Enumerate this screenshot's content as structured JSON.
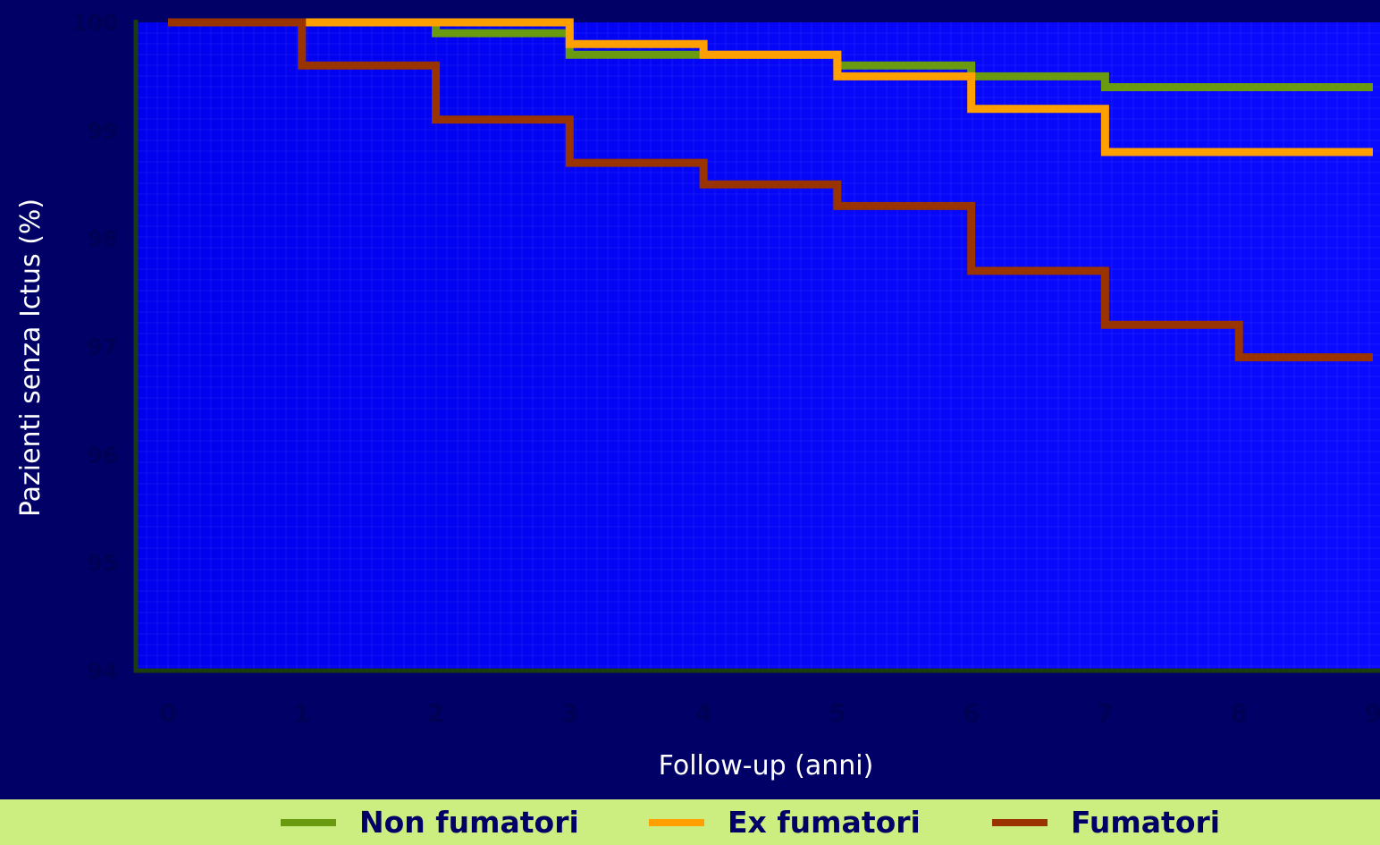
{
  "chart_data": {
    "type": "line",
    "step": true,
    "xlabel": "Follow-up (anni)",
    "ylabel": "Pazienti senza Ictus (%)",
    "xlim": [
      0,
      9
    ],
    "ylim": [
      94,
      100
    ],
    "x_ticks": [
      "0",
      "1",
      "2",
      "3",
      "4",
      "5",
      "6",
      "7",
      "8",
      "9"
    ],
    "y_ticks": [
      "94",
      "95",
      "96",
      "97",
      "98",
      "99",
      "100"
    ],
    "grid": true,
    "legend_position": "bottom",
    "series": [
      {
        "name": "Non fumatori",
        "color": "#6a9a10",
        "points": [
          [
            0,
            100
          ],
          [
            2,
            100
          ],
          [
            2,
            99.9
          ],
          [
            3,
            99.9
          ],
          [
            3,
            99.7
          ],
          [
            4,
            99.7
          ],
          [
            5,
            99.7
          ],
          [
            5,
            99.6
          ],
          [
            6,
            99.6
          ],
          [
            6,
            99.5
          ],
          [
            7,
            99.5
          ],
          [
            7,
            99.4
          ],
          [
            9,
            99.4
          ]
        ]
      },
      {
        "name": "Ex fumatori",
        "color": "#ffa000",
        "points": [
          [
            0,
            100
          ],
          [
            3,
            100
          ],
          [
            3,
            99.8
          ],
          [
            4,
            99.8
          ],
          [
            4,
            99.7
          ],
          [
            5,
            99.7
          ],
          [
            5,
            99.5
          ],
          [
            6,
            99.5
          ],
          [
            6,
            99.2
          ],
          [
            7,
            99.2
          ],
          [
            7,
            98.8
          ],
          [
            9,
            98.8
          ]
        ]
      },
      {
        "name": "Fumatori",
        "color": "#993300",
        "points": [
          [
            0,
            100
          ],
          [
            1,
            100
          ],
          [
            1,
            99.6
          ],
          [
            2,
            99.6
          ],
          [
            2,
            99.1
          ],
          [
            3,
            99.1
          ],
          [
            3,
            98.7
          ],
          [
            4,
            98.7
          ],
          [
            4,
            98.5
          ],
          [
            5,
            98.5
          ],
          [
            5,
            98.3
          ],
          [
            6,
            98.3
          ],
          [
            6,
            97.7
          ],
          [
            7,
            97.7
          ],
          [
            7,
            97.2
          ],
          [
            8,
            97.2
          ],
          [
            8,
            96.9
          ],
          [
            9,
            96.9
          ]
        ]
      }
    ]
  }
}
